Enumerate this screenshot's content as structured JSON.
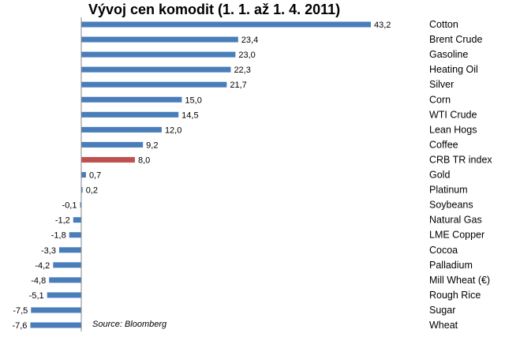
{
  "chart_data": {
    "type": "bar",
    "orientation": "horizontal",
    "title": "Vývoj cen komodit (1. 1. až 1. 4. 2011)",
    "source": "Source: Bloomberg",
    "categories": [
      "Cotton",
      "Brent Crude",
      "Gasoline",
      "Heating Oil",
      "Silver",
      "Corn",
      "WTI Crude",
      "Lean Hogs",
      "Coffee",
      "CRB TR index",
      "Gold",
      "Platinum",
      "Soybeans",
      "Natural Gas",
      "LME Copper",
      "Cocoa",
      "Palladium",
      "Mill Wheat (€)",
      "Rough Rice",
      "Sugar",
      "Wheat"
    ],
    "values": [
      43.2,
      23.4,
      23.0,
      22.3,
      21.7,
      15.0,
      14.5,
      12.0,
      9.2,
      8.0,
      0.7,
      0.2,
      -0.1,
      -1.2,
      -1.8,
      -3.3,
      -4.2,
      -4.8,
      -5.1,
      -7.5,
      -7.6
    ],
    "value_labels": [
      "43,2",
      "23,4",
      "23,0",
      "22,3",
      "21,7",
      "15,0",
      "14,5",
      "12,0",
      "9,2",
      "8,0",
      "0,7",
      "0,2",
      "-0,1",
      "-1,2",
      "-1,8",
      "-3,3",
      "-4,2",
      "-4,8",
      "-5,1",
      "-7,5",
      "-7,6"
    ],
    "highlight_category": "CRB TR index",
    "colors": {
      "bar": "#4a7ebb",
      "highlight": "#c0504d",
      "axis": "#868686"
    },
    "xlabel": "",
    "ylabel": ""
  }
}
